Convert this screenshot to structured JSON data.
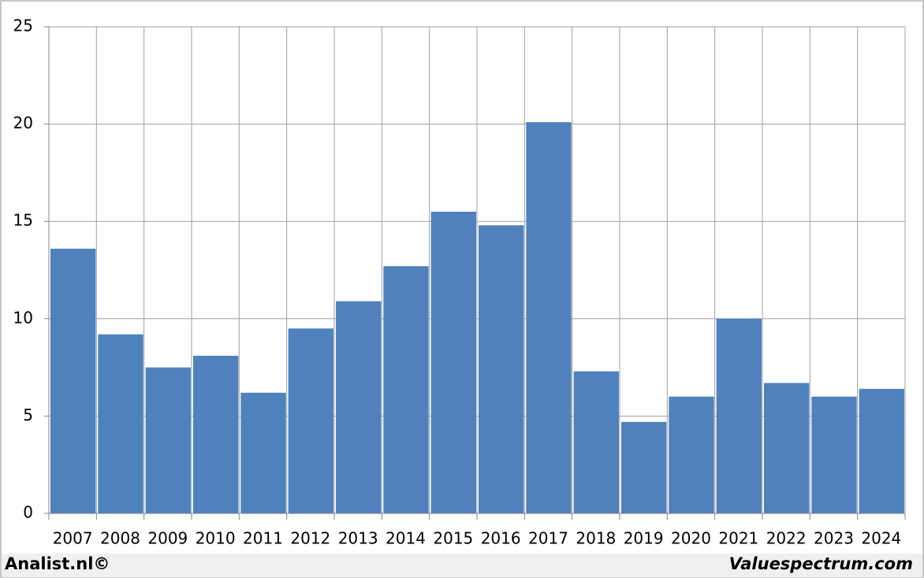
{
  "chart_data": {
    "type": "bar",
    "categories": [
      "2007",
      "2008",
      "2009",
      "2010",
      "2011",
      "2012",
      "2013",
      "2014",
      "2015",
      "2016",
      "2017",
      "2018",
      "2019",
      "2020",
      "2021",
      "2022",
      "2023",
      "2024"
    ],
    "values": [
      13.6,
      9.2,
      7.5,
      8.1,
      6.2,
      9.5,
      10.9,
      12.7,
      15.5,
      14.8,
      20.1,
      7.3,
      4.7,
      6.0,
      10.0,
      6.7,
      6.0,
      6.4
    ],
    "color": "#4f81bd",
    "ylim": [
      0,
      25
    ],
    "yticks": [
      0,
      5,
      10,
      15,
      20,
      25
    ],
    "grid": true,
    "credits": [
      "Analist.nl©",
      "Valuespectrum.com"
    ]
  }
}
